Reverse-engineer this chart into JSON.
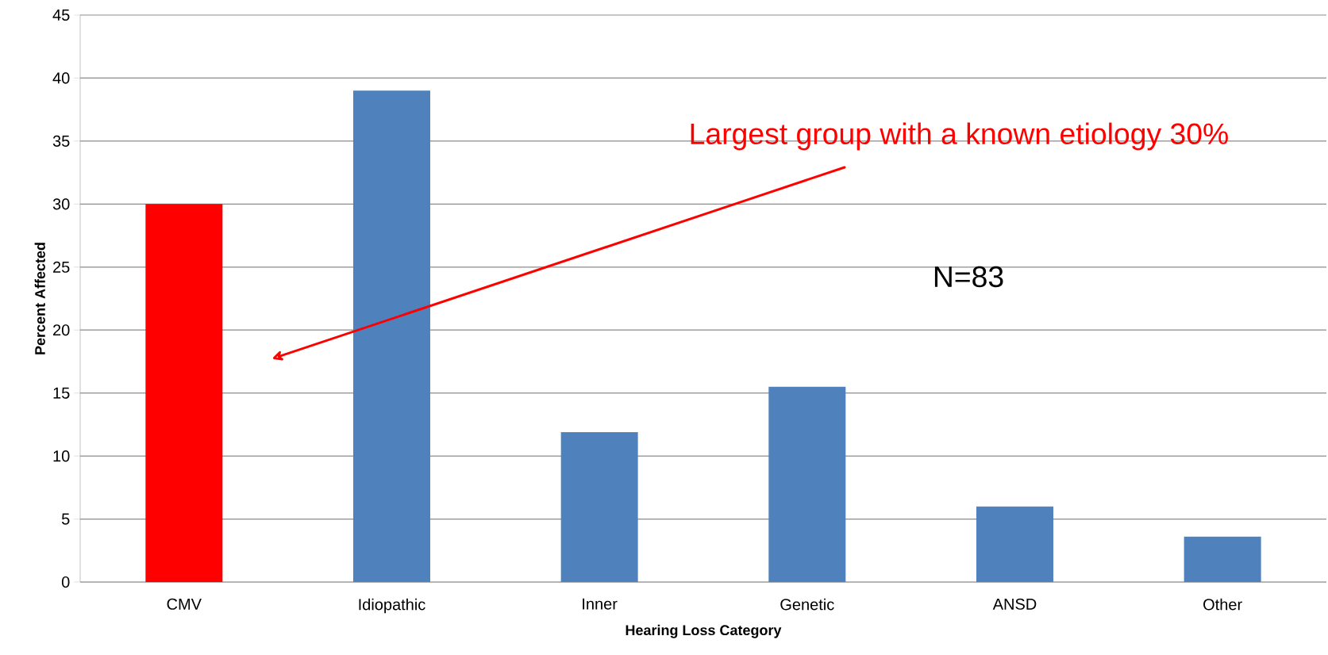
{
  "chart_data": {
    "type": "bar",
    "categories": [
      "CMV",
      "Idiopathic",
      "Inner",
      "Genetic",
      "ANSD",
      "Other"
    ],
    "values": [
      30,
      39,
      11.9,
      15.5,
      6,
      3.6
    ],
    "colors": [
      "#ff0000",
      "#4f81bd",
      "#4f81bd",
      "#4f81bd",
      "#4f81bd",
      "#4f81bd"
    ],
    "xlabel": "Hearing Loss Category",
    "ylabel": "Percent Affected",
    "ylim": [
      0,
      45
    ],
    "yticks": [
      0,
      5,
      10,
      15,
      20,
      25,
      30,
      35,
      40,
      45
    ],
    "grid": "y",
    "annotations": [
      "Largest group with a known etiology 30%",
      "N=83"
    ]
  }
}
